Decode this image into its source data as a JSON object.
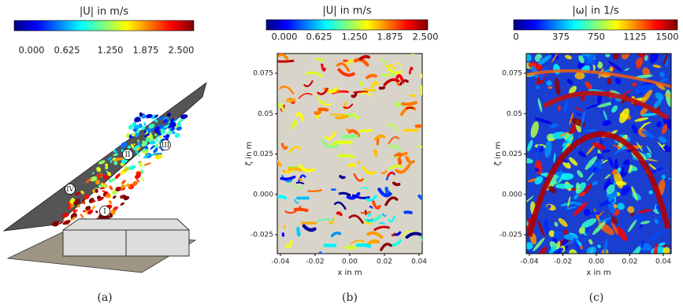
{
  "panels": [
    {
      "caption": "(a)",
      "colorbar": {
        "title": "|U| in m/s",
        "ticks": [
          "0.000",
          "0.625",
          "1.250",
          "1.875",
          "2.500"
        ]
      },
      "labels": [
        "I",
        "II",
        "III",
        "IV"
      ]
    },
    {
      "caption": "(b)",
      "colorbar": {
        "title": "|U| in m/s",
        "ticks": [
          "0.000",
          "0.625",
          "1.250",
          "1.875",
          "2.500"
        ]
      },
      "x_label": "x in m",
      "y_label": "ζ in m",
      "xticks": [
        "-0.04",
        "-0.02",
        "0.00",
        "0.02",
        "0.04"
      ],
      "yticks": [
        "0.075",
        "0.05",
        "0.025",
        "0.000",
        "-0.025"
      ]
    },
    {
      "caption": "(c)",
      "colorbar": {
        "title": "|ω| in  1/s",
        "ticks": [
          "0",
          "375",
          "750",
          "1125",
          "1500"
        ]
      },
      "x_label": "x in m",
      "y_label": "ζ in m",
      "xticks": [
        "-0.04",
        "-0.02",
        "0.00",
        "0.02",
        "0.04"
      ],
      "yticks": [
        "0.075",
        "0.05",
        "0.025",
        "0.000",
        "-0.025"
      ]
    }
  ]
}
